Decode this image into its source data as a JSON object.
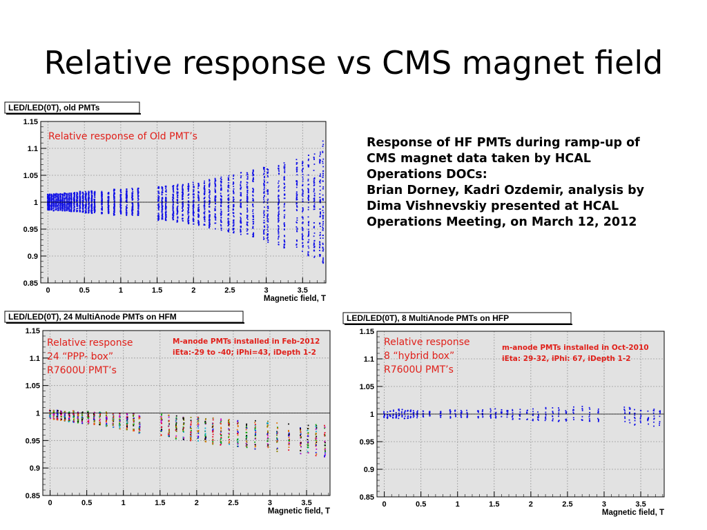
{
  "slide": {
    "title": "Relative response vs CMS magnet field",
    "description_lines": [
      "Response of HF PMTs during ramp-up of",
      "CMS magnet data taken by HCAL",
      "Operations DOCs:",
      "Brian Dorney, Kadri Ozdemir, analysis by",
      "Dima Vishnevskiy presented at HCAL",
      "Operations Meeting, on March 12, 2012"
    ]
  },
  "colors": {
    "plot_background": "#e2e2e2",
    "frame_background": "#ffffff",
    "old_pmt_points": "#1010e6",
    "annotation_red": "#e0201a"
  },
  "chart_data": [
    {
      "type": "scatter",
      "title": "LED/LED(0T), old PMTs",
      "xlabel": "Magnetic field, T",
      "ylabel": "",
      "xlim": [
        -0.1,
        3.82
      ],
      "ylim": [
        0.85,
        1.15
      ],
      "x_ticks": [
        0,
        0.5,
        1,
        1.5,
        2,
        2.5,
        3,
        3.5
      ],
      "x_tick_labels": [
        "0",
        "0.5",
        "1",
        "1.5",
        "2",
        "2.5",
        "3",
        "3.5"
      ],
      "y_ticks": [
        0.85,
        0.9,
        0.95,
        1,
        1.05,
        1.1,
        1.15
      ],
      "y_tick_labels": [
        "0.85",
        "0.9",
        "0.95",
        "1",
        "1.05",
        "1.1",
        "1.15"
      ],
      "grid": true,
      "annotations": [
        "Relative response of Old PMT’s"
      ],
      "series": [
        {
          "color": "#1010e6",
          "columns": [
            {
              "x": 0.0,
              "min": 0.985,
              "max": 1.015
            },
            {
              "x": 0.02,
              "min": 0.985,
              "max": 1.015
            },
            {
              "x": 0.05,
              "min": 0.985,
              "max": 1.015
            },
            {
              "x": 0.08,
              "min": 0.984,
              "max": 1.016
            },
            {
              "x": 0.11,
              "min": 0.985,
              "max": 1.016
            },
            {
              "x": 0.14,
              "min": 0.984,
              "max": 1.015
            },
            {
              "x": 0.17,
              "min": 0.985,
              "max": 1.017
            },
            {
              "x": 0.2,
              "min": 0.984,
              "max": 1.016
            },
            {
              "x": 0.23,
              "min": 0.983,
              "max": 1.017
            },
            {
              "x": 0.26,
              "min": 0.984,
              "max": 1.016
            },
            {
              "x": 0.29,
              "min": 0.983,
              "max": 1.018
            },
            {
              "x": 0.32,
              "min": 0.982,
              "max": 1.017
            },
            {
              "x": 0.36,
              "min": 0.982,
              "max": 1.018
            },
            {
              "x": 0.4,
              "min": 0.982,
              "max": 1.018
            },
            {
              "x": 0.44,
              "min": 0.981,
              "max": 1.02
            },
            {
              "x": 0.48,
              "min": 0.981,
              "max": 1.019
            },
            {
              "x": 0.52,
              "min": 0.98,
              "max": 1.02
            },
            {
              "x": 0.56,
              "min": 0.98,
              "max": 1.02
            },
            {
              "x": 0.6,
              "min": 0.979,
              "max": 1.021
            },
            {
              "x": 0.64,
              "min": 0.98,
              "max": 1.02
            },
            {
              "x": 0.74,
              "min": 0.978,
              "max": 1.02
            },
            {
              "x": 0.83,
              "min": 0.978,
              "max": 1.022
            },
            {
              "x": 0.91,
              "min": 0.976,
              "max": 1.024
            },
            {
              "x": 1.0,
              "min": 0.976,
              "max": 1.024
            },
            {
              "x": 1.08,
              "min": 0.975,
              "max": 1.025
            },
            {
              "x": 1.16,
              "min": 0.975,
              "max": 1.026
            },
            {
              "x": 1.24,
              "min": 0.974,
              "max": 1.026
            },
            {
              "x": 1.52,
              "min": 0.966,
              "max": 1.03
            },
            {
              "x": 1.57,
              "min": 0.966,
              "max": 1.03
            },
            {
              "x": 1.62,
              "min": 0.965,
              "max": 1.031
            },
            {
              "x": 1.72,
              "min": 0.964,
              "max": 1.032
            },
            {
              "x": 1.78,
              "min": 0.963,
              "max": 1.033
            },
            {
              "x": 1.85,
              "min": 0.962,
              "max": 1.034
            },
            {
              "x": 1.93,
              "min": 0.96,
              "max": 1.035
            },
            {
              "x": 2.0,
              "min": 0.958,
              "max": 1.037
            },
            {
              "x": 2.07,
              "min": 0.957,
              "max": 1.038
            },
            {
              "x": 2.15,
              "min": 0.955,
              "max": 1.04
            },
            {
              "x": 2.22,
              "min": 0.952,
              "max": 1.042
            },
            {
              "x": 2.3,
              "min": 0.95,
              "max": 1.045
            },
            {
              "x": 2.38,
              "min": 0.948,
              "max": 1.047
            },
            {
              "x": 2.48,
              "min": 0.945,
              "max": 1.05
            },
            {
              "x": 2.55,
              "min": 0.943,
              "max": 1.052
            },
            {
              "x": 2.65,
              "min": 0.94,
              "max": 1.055
            },
            {
              "x": 2.74,
              "min": 0.937,
              "max": 1.057
            },
            {
              "x": 2.82,
              "min": 0.935,
              "max": 1.06
            },
            {
              "x": 2.97,
              "min": 0.93,
              "max": 1.065
            },
            {
              "x": 3.02,
              "min": 0.925,
              "max": 1.068
            },
            {
              "x": 3.17,
              "min": 0.92,
              "max": 1.072
            },
            {
              "x": 3.25,
              "min": 0.915,
              "max": 1.076
            },
            {
              "x": 3.42,
              "min": 0.91,
              "max": 1.08
            },
            {
              "x": 3.5,
              "min": 0.905,
              "max": 1.085
            },
            {
              "x": 3.58,
              "min": 0.9,
              "max": 1.09
            },
            {
              "x": 3.66,
              "min": 0.895,
              "max": 1.095
            },
            {
              "x": 3.74,
              "min": 0.89,
              "max": 1.1
            },
            {
              "x": 3.78,
              "min": 0.885,
              "max": 1.118
            }
          ]
        }
      ]
    },
    {
      "type": "scatter",
      "title": "LED/LED(0T), 24 MultiAnode PMTs on HFM",
      "xlabel": "Magnetic field, T",
      "ylabel": "",
      "xlim": [
        -0.1,
        3.82
      ],
      "ylim": [
        0.85,
        1.15
      ],
      "x_ticks": [
        0,
        0.5,
        1,
        1.5,
        2,
        2.5,
        3,
        3.5
      ],
      "x_tick_labels": [
        "0",
        "0.5",
        "1",
        "1.5",
        "2",
        "2.5",
        "3",
        "3.5"
      ],
      "y_ticks": [
        0.85,
        0.9,
        0.95,
        1,
        1.05,
        1.1,
        1.15
      ],
      "y_tick_labels": [
        "0.85",
        "0.9",
        "0.95",
        "1",
        "1.05",
        "1.1",
        "1.15"
      ],
      "grid": true,
      "annotations": [
        "Relative response",
        "24 “PPP- box”",
        " R7600U PMT’s"
      ],
      "installation_note": [
        "M-anode PMTs installed in Feb-2012",
        "iEta:-29 to -40; iPhi=43, iDepth 1-2"
      ],
      "series": [
        {
          "colors": [
            "#e6001a",
            "#00aa00",
            "#1010e6",
            "#cc00cc",
            "#00aacc",
            "#e07000",
            "#808000",
            "#000000"
          ],
          "columns": [
            {
              "x": 0.0,
              "min": 0.99,
              "max": 1.005
            },
            {
              "x": 0.05,
              "min": 0.988,
              "max": 1.005
            },
            {
              "x": 0.1,
              "min": 0.987,
              "max": 1.005
            },
            {
              "x": 0.15,
              "min": 0.986,
              "max": 1.004
            },
            {
              "x": 0.2,
              "min": 0.985,
              "max": 1.004
            },
            {
              "x": 0.26,
              "min": 0.984,
              "max": 1.004
            },
            {
              "x": 0.32,
              "min": 0.983,
              "max": 1.004
            },
            {
              "x": 0.38,
              "min": 0.982,
              "max": 1.003
            },
            {
              "x": 0.44,
              "min": 0.981,
              "max": 1.003
            },
            {
              "x": 0.52,
              "min": 0.98,
              "max": 1.003
            },
            {
              "x": 0.6,
              "min": 0.979,
              "max": 1.002
            },
            {
              "x": 0.68,
              "min": 0.977,
              "max": 1.002
            },
            {
              "x": 0.77,
              "min": 0.975,
              "max": 1.002
            },
            {
              "x": 0.86,
              "min": 0.973,
              "max": 1.001
            },
            {
              "x": 0.95,
              "min": 0.97,
              "max": 1.001
            },
            {
              "x": 1.05,
              "min": 0.968,
              "max": 1.0
            },
            {
              "x": 1.14,
              "min": 0.966,
              "max": 1.0
            },
            {
              "x": 1.22,
              "min": 0.963,
              "max": 1.0
            },
            {
              "x": 1.52,
              "min": 0.958,
              "max": 0.998
            },
            {
              "x": 1.62,
              "min": 0.956,
              "max": 0.997
            },
            {
              "x": 1.72,
              "min": 0.953,
              "max": 0.996
            },
            {
              "x": 1.82,
              "min": 0.951,
              "max": 0.995
            },
            {
              "x": 1.92,
              "min": 0.949,
              "max": 0.994
            },
            {
              "x": 2.02,
              "min": 0.947,
              "max": 0.993
            },
            {
              "x": 2.12,
              "min": 0.945,
              "max": 0.992
            },
            {
              "x": 2.22,
              "min": 0.943,
              "max": 0.991
            },
            {
              "x": 2.33,
              "min": 0.941,
              "max": 0.99
            },
            {
              "x": 2.44,
              "min": 0.94,
              "max": 0.989
            },
            {
              "x": 2.56,
              "min": 0.938,
              "max": 0.988
            },
            {
              "x": 2.68,
              "min": 0.936,
              "max": 0.987
            },
            {
              "x": 2.8,
              "min": 0.934,
              "max": 0.986
            },
            {
              "x": 2.97,
              "min": 0.932,
              "max": 0.985
            },
            {
              "x": 3.1,
              "min": 0.93,
              "max": 0.984
            },
            {
              "x": 3.26,
              "min": 0.928,
              "max": 0.983
            },
            {
              "x": 3.42,
              "min": 0.926,
              "max": 0.982
            },
            {
              "x": 3.52,
              "min": 0.924,
              "max": 0.981
            },
            {
              "x": 3.63,
              "min": 0.922,
              "max": 0.98
            },
            {
              "x": 3.75,
              "min": 0.92,
              "max": 0.979
            }
          ]
        }
      ]
    },
    {
      "type": "scatter",
      "title": "LED/LED(0T), 8 MultiAnode PMTs on HFP",
      "xlabel": "Magnetic field, T",
      "ylabel": "",
      "xlim": [
        -0.1,
        3.82
      ],
      "ylim": [
        0.85,
        1.15
      ],
      "x_ticks": [
        0,
        0.5,
        1,
        1.5,
        2,
        2.5,
        3,
        3.5
      ],
      "x_tick_labels": [
        "0",
        "0.5",
        "1",
        "1.5",
        "2",
        "2.5",
        "3",
        "3.5"
      ],
      "y_ticks": [
        0.85,
        0.9,
        0.95,
        1,
        1.05,
        1.1,
        1.15
      ],
      "y_tick_labels": [
        "0.85",
        "0.9",
        "0.95",
        "1",
        "1.05",
        "1.1",
        "1.15"
      ],
      "grid": true,
      "annotations": [
        "Relative response",
        "8 “hybrid box”",
        " R7600U PMT’s"
      ],
      "installation_note": [
        "m-anode PMTs installed in Oct-2010",
        "iEta: 29-32, iPhi: 67, iDepth 1-2"
      ],
      "series": [
        {
          "color": "#1010e6",
          "columns": [
            {
              "x": 0.0,
              "min": 0.993,
              "max": 1.008
            },
            {
              "x": 0.04,
              "min": 0.992,
              "max": 1.009
            },
            {
              "x": 0.08,
              "min": 0.992,
              "max": 1.009
            },
            {
              "x": 0.12,
              "min": 0.991,
              "max": 1.01
            },
            {
              "x": 0.16,
              "min": 0.992,
              "max": 1.009
            },
            {
              "x": 0.2,
              "min": 0.991,
              "max": 1.01
            },
            {
              "x": 0.24,
              "min": 0.992,
              "max": 1.009
            },
            {
              "x": 0.28,
              "min": 0.991,
              "max": 1.01
            },
            {
              "x": 0.32,
              "min": 0.992,
              "max": 1.008
            },
            {
              "x": 0.36,
              "min": 0.993,
              "max": 1.008
            },
            {
              "x": 0.4,
              "min": 0.993,
              "max": 1.007
            },
            {
              "x": 0.45,
              "min": 0.993,
              "max": 1.006
            },
            {
              "x": 0.53,
              "min": 0.994,
              "max": 1.006
            },
            {
              "x": 0.62,
              "min": 0.994,
              "max": 1.005
            },
            {
              "x": 0.77,
              "min": 0.993,
              "max": 1.007
            },
            {
              "x": 0.9,
              "min": 0.992,
              "max": 1.008
            },
            {
              "x": 0.97,
              "min": 0.992,
              "max": 1.008
            },
            {
              "x": 1.05,
              "min": 0.993,
              "max": 1.007
            },
            {
              "x": 1.13,
              "min": 0.993,
              "max": 1.007
            },
            {
              "x": 1.28,
              "min": 0.992,
              "max": 1.008
            },
            {
              "x": 1.34,
              "min": 0.992,
              "max": 1.008
            },
            {
              "x": 1.45,
              "min": 0.99,
              "max": 1.01
            },
            {
              "x": 1.52,
              "min": 0.99,
              "max": 1.01
            },
            {
              "x": 1.6,
              "min": 0.991,
              "max": 1.009
            },
            {
              "x": 1.68,
              "min": 0.99,
              "max": 1.01
            },
            {
              "x": 1.75,
              "min": 0.99,
              "max": 1.009
            },
            {
              "x": 1.85,
              "min": 0.989,
              "max": 1.011
            },
            {
              "x": 1.95,
              "min": 0.989,
              "max": 1.01
            },
            {
              "x": 2.03,
              "min": 0.988,
              "max": 1.011
            },
            {
              "x": 2.1,
              "min": 0.988,
              "max": 1.011
            },
            {
              "x": 2.2,
              "min": 0.987,
              "max": 1.012
            },
            {
              "x": 2.3,
              "min": 0.987,
              "max": 1.012
            },
            {
              "x": 2.38,
              "min": 0.986,
              "max": 1.013
            },
            {
              "x": 2.48,
              "min": 0.986,
              "max": 1.013
            },
            {
              "x": 2.58,
              "min": 0.985,
              "max": 1.013
            },
            {
              "x": 2.7,
              "min": 0.985,
              "max": 1.014
            },
            {
              "x": 2.8,
              "min": 0.984,
              "max": 1.014
            },
            {
              "x": 2.92,
              "min": 0.984,
              "max": 1.013
            },
            {
              "x": 3.28,
              "min": 0.982,
              "max": 1.013
            },
            {
              "x": 3.35,
              "min": 0.981,
              "max": 1.012
            },
            {
              "x": 3.42,
              "min": 0.98,
              "max": 1.012
            },
            {
              "x": 3.5,
              "min": 0.98,
              "max": 1.01
            },
            {
              "x": 3.6,
              "min": 0.979,
              "max": 1.01
            },
            {
              "x": 3.68,
              "min": 0.978,
              "max": 1.009
            },
            {
              "x": 3.76,
              "min": 0.975,
              "max": 1.008
            }
          ]
        }
      ]
    }
  ]
}
